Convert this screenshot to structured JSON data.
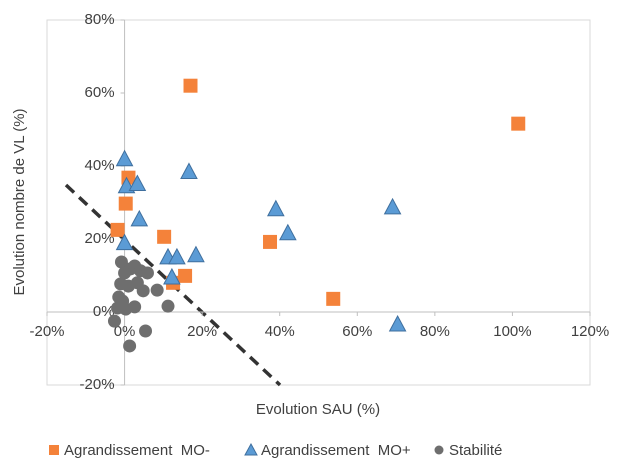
{
  "chart_data": {
    "type": "scatter",
    "x_label": "Evolution SAU (%)",
    "y_label": "Evolution nombre de VL (%)",
    "xlim": [
      -20,
      120
    ],
    "ylim": [
      -20,
      80
    ],
    "xticks": [
      {
        "value": -20,
        "label": "-20%"
      },
      {
        "value": 0,
        "label": "0%"
      },
      {
        "value": 20,
        "label": "20%"
      },
      {
        "value": 40,
        "label": "40%"
      },
      {
        "value": 60,
        "label": "60%"
      },
      {
        "value": 80,
        "label": "80%"
      },
      {
        "value": 100,
        "label": "100%"
      },
      {
        "value": 120,
        "label": "120%"
      }
    ],
    "yticks": [
      {
        "value": -20,
        "label": "-20%"
      },
      {
        "value": 0,
        "label": "0%"
      },
      {
        "value": 20,
        "label": "20%"
      },
      {
        "value": 40,
        "label": "40%"
      },
      {
        "value": 60,
        "label": "60%"
      },
      {
        "value": 80,
        "label": "80%"
      }
    ],
    "legend": "bottom",
    "series": [
      {
        "name": "Agrandissement  MO-",
        "marker": "square",
        "color": "#f4823a",
        "x": [
          17,
          101.5,
          1,
          0.3,
          -1.8,
          10.2,
          37.5,
          15.6,
          12.5,
          53.8
        ],
        "values": [
          62,
          51.6,
          36.8,
          29.7,
          22.5,
          20.6,
          19.2,
          9.9,
          8,
          3.6
        ]
      },
      {
        "name": "Agrandissement  MO+",
        "marker": "triangle",
        "color": "#5b9bd5",
        "x": [
          0,
          0.5,
          3.3,
          16.6,
          0,
          3.8,
          11.2,
          13.5,
          18.4,
          12.2,
          39,
          42.1,
          69.1,
          70.4
        ],
        "values": [
          42,
          34.6,
          35.2,
          38.5,
          19,
          25.5,
          15.1,
          15.1,
          15.7,
          9.6,
          28.3,
          21.7,
          28.8,
          -3.3
        ]
      },
      {
        "name": "Stabilité",
        "marker": "circle",
        "color": "#6e6e6e",
        "x": [
          -0.8,
          0,
          1.5,
          2.6,
          4.1,
          5.9,
          -1,
          1,
          3.3,
          4.8,
          8.4,
          -1.8,
          0.3,
          2.6,
          11.2,
          -2.6,
          5.4,
          1.3,
          -1.5,
          -0.5
        ],
        "values": [
          13.7,
          10.7,
          11.8,
          12.6,
          11.3,
          10.7,
          7.7,
          7.1,
          8,
          5.8,
          6,
          1.1,
          0.8,
          1.4,
          1.6,
          -2.5,
          -5.2,
          -9.3,
          4.1,
          3
        ]
      }
    ]
  }
}
